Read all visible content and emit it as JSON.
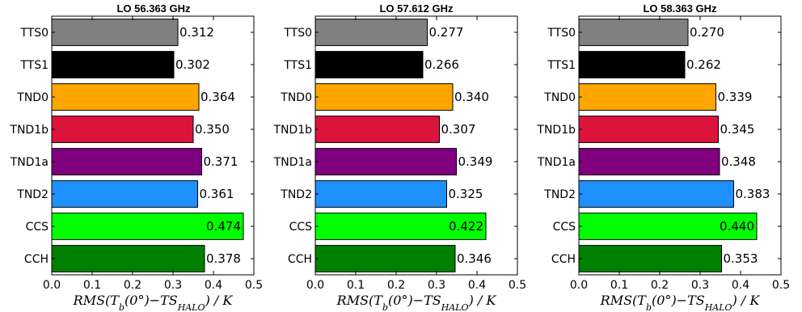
{
  "chart_data": [
    {
      "type": "bar",
      "orientation": "horizontal",
      "title": "LO 56.363 GHz",
      "categories": [
        "TTS0",
        "TTS1",
        "TND0",
        "TND1b",
        "TND1a",
        "TND2",
        "CCS",
        "CCH"
      ],
      "values": [
        0.312,
        0.302,
        0.364,
        0.35,
        0.371,
        0.361,
        0.474,
        0.378
      ],
      "value_labels": [
        "0.312",
        "0.302",
        "0.364",
        "0.350",
        "0.371",
        "0.361",
        "0.474",
        "0.378"
      ],
      "colors": [
        "#808080",
        "#000000",
        "#FFA500",
        "#DC143C",
        "#800080",
        "#1E90FF",
        "#00FF00",
        "#008000"
      ],
      "xlim": [
        0.0,
        0.5
      ],
      "xticks": [
        "0.0",
        "0.1",
        "0.2",
        "0.3",
        "0.4",
        "0.5"
      ],
      "xlabel": "RMS(T_b(0°)−TS_HALO) / K"
    },
    {
      "type": "bar",
      "orientation": "horizontal",
      "title": "LO 57.612 GHz",
      "categories": [
        "TTS0",
        "TTS1",
        "TND0",
        "TND1b",
        "TND1a",
        "TND2",
        "CCS",
        "CCH"
      ],
      "values": [
        0.277,
        0.266,
        0.34,
        0.307,
        0.349,
        0.325,
        0.422,
        0.346
      ],
      "value_labels": [
        "0.277",
        "0.266",
        "0.340",
        "0.307",
        "0.349",
        "0.325",
        "0.422",
        "0.346"
      ],
      "colors": [
        "#808080",
        "#000000",
        "#FFA500",
        "#DC143C",
        "#800080",
        "#1E90FF",
        "#00FF00",
        "#008000"
      ],
      "xlim": [
        0.0,
        0.5
      ],
      "xticks": [
        "0.0",
        "0.1",
        "0.2",
        "0.3",
        "0.4",
        "0.5"
      ],
      "xlabel": "RMS(T_b(0°)−TS_HALO) / K"
    },
    {
      "type": "bar",
      "orientation": "horizontal",
      "title": "LO 58.363 GHz",
      "categories": [
        "TTS0",
        "TTS1",
        "TND0",
        "TND1b",
        "TND1a",
        "TND2",
        "CCS",
        "CCH"
      ],
      "values": [
        0.27,
        0.262,
        0.339,
        0.345,
        0.348,
        0.383,
        0.44,
        0.353
      ],
      "value_labels": [
        "0.270",
        "0.262",
        "0.339",
        "0.345",
        "0.348",
        "0.383",
        "0.440",
        "0.353"
      ],
      "colors": [
        "#808080",
        "#000000",
        "#FFA500",
        "#DC143C",
        "#800080",
        "#1E90FF",
        "#00FF00",
        "#008000"
      ],
      "xlim": [
        0.0,
        0.5
      ],
      "xticks": [
        "0.0",
        "0.1",
        "0.2",
        "0.3",
        "0.4",
        "0.5"
      ],
      "xlabel": "RMS(T_b(0°)−TS_HALO) / K"
    }
  ]
}
